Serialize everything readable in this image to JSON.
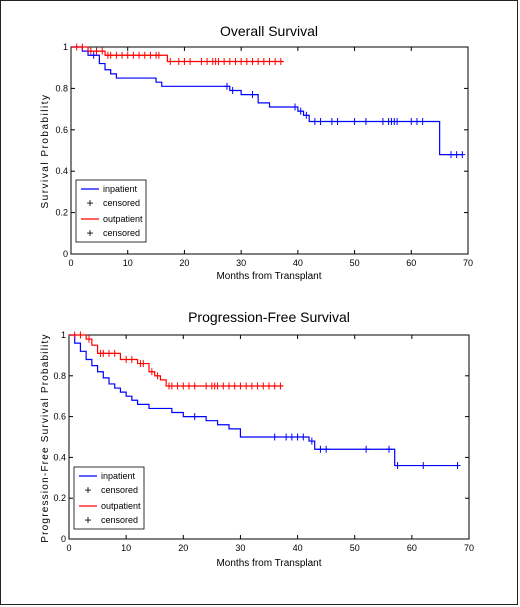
{
  "colors": {
    "inpatient": "#0000ff",
    "outpatient": "#ff0000",
    "axis": "#000000"
  },
  "chart_data": [
    {
      "type": "line",
      "title": "Overall Survival",
      "xlabel": "Months from Transplant",
      "ylabel": "Survival Probability",
      "xlim": [
        0,
        70
      ],
      "ylim": [
        0,
        1
      ],
      "xticks": [
        0,
        10,
        20,
        30,
        40,
        50,
        60,
        70
      ],
      "yticks": [
        0,
        0.2,
        0.4,
        0.6,
        0.8,
        1
      ],
      "ytick_labels": [
        "0",
        "0.2",
        "0.4",
        "0.6",
        "0.8",
        "1"
      ],
      "step": true,
      "legend": {
        "placement": "bottom-left",
        "entries": [
          "inpatient",
          "censored",
          "outpatient",
          "censored"
        ]
      },
      "series": [
        {
          "name": "inpatient",
          "color_key": "inpatient",
          "steps": [
            [
              0,
              1.0
            ],
            [
              2,
              0.98
            ],
            [
              3,
              0.96
            ],
            [
              5,
              0.92
            ],
            [
              6,
              0.89
            ],
            [
              7,
              0.87
            ],
            [
              8,
              0.85
            ],
            [
              15,
              0.83
            ],
            [
              16,
              0.81
            ],
            [
              28,
              0.79
            ],
            [
              30,
              0.77
            ],
            [
              33,
              0.73
            ],
            [
              35,
              0.71
            ],
            [
              40,
              0.69
            ],
            [
              41,
              0.67
            ],
            [
              42,
              0.64
            ],
            [
              65,
              0.48
            ],
            [
              69,
              0.48
            ]
          ],
          "censored": [
            4,
            27.5,
            28.5,
            32,
            39.5,
            40.5,
            41.5,
            43,
            44,
            46,
            47,
            50,
            52,
            55,
            56,
            56.5,
            57,
            57.5,
            60,
            61,
            62,
            67,
            68,
            69
          ]
        },
        {
          "name": "outpatient",
          "color_key": "outpatient",
          "steps": [
            [
              0,
              1.0
            ],
            [
              3,
              0.98
            ],
            [
              6,
              0.96
            ],
            [
              17,
              0.93
            ],
            [
              37.5,
              0.93
            ]
          ],
          "censored": [
            1,
            2,
            3.5,
            4.5,
            5.5,
            6.5,
            7,
            8,
            9,
            10,
            11,
            12,
            13,
            14,
            15,
            15.5,
            17.5,
            19,
            20,
            21,
            23,
            24,
            25,
            25.5,
            26,
            27,
            28,
            29,
            30,
            31,
            32,
            33,
            34,
            35,
            36,
            37
          ]
        }
      ]
    },
    {
      "type": "line",
      "title": "Progression-Free Survival",
      "xlabel": "Months from Transplant",
      "ylabel": "Progression-Free Survival Probability",
      "xlim": [
        0,
        70
      ],
      "ylim": [
        0,
        1
      ],
      "xticks": [
        0,
        10,
        20,
        30,
        40,
        50,
        60,
        70
      ],
      "yticks": [
        0,
        0.2,
        0.4,
        0.6,
        0.8,
        1
      ],
      "ytick_labels": [
        "0",
        "0.2",
        "0.4",
        "0.6",
        "0.8",
        "1"
      ],
      "step": true,
      "legend": {
        "placement": "bottom-left",
        "entries": [
          "inpatient",
          "censored",
          "outpatient",
          "censored"
        ]
      },
      "series": [
        {
          "name": "inpatient",
          "color_key": "inpatient",
          "steps": [
            [
              0,
              1.0
            ],
            [
              1,
              0.96
            ],
            [
              2,
              0.92
            ],
            [
              3,
              0.88
            ],
            [
              4,
              0.85
            ],
            [
              5,
              0.82
            ],
            [
              6,
              0.79
            ],
            [
              7,
              0.76
            ],
            [
              8,
              0.74
            ],
            [
              9,
              0.72
            ],
            [
              10,
              0.7
            ],
            [
              11,
              0.68
            ],
            [
              12,
              0.66
            ],
            [
              14,
              0.64
            ],
            [
              18,
              0.62
            ],
            [
              20,
              0.6
            ],
            [
              24,
              0.58
            ],
            [
              26,
              0.56
            ],
            [
              28,
              0.54
            ],
            [
              30,
              0.5
            ],
            [
              42,
              0.48
            ],
            [
              43,
              0.44
            ],
            [
              57,
              0.36
            ],
            [
              68,
              0.36
            ]
          ],
          "censored": [
            22,
            36,
            38,
            39,
            40,
            41,
            42.5,
            44,
            45,
            52,
            56,
            57.5,
            62,
            68
          ]
        },
        {
          "name": "outpatient",
          "color_key": "outpatient",
          "steps": [
            [
              0,
              1.0
            ],
            [
              3,
              0.98
            ],
            [
              4,
              0.95
            ],
            [
              5,
              0.91
            ],
            [
              9,
              0.88
            ],
            [
              12,
              0.86
            ],
            [
              14,
              0.82
            ],
            [
              15,
              0.8
            ],
            [
              16,
              0.78
            ],
            [
              17,
              0.75
            ],
            [
              37.5,
              0.75
            ]
          ],
          "censored": [
            1,
            2,
            3.5,
            5.5,
            6,
            7,
            8,
            10,
            11,
            12.5,
            13,
            14.5,
            15.5,
            17.5,
            18,
            19,
            20,
            21,
            22,
            24,
            25,
            25.5,
            26,
            27,
            28,
            29,
            30,
            31,
            32,
            33,
            34,
            35,
            36,
            37
          ]
        }
      ]
    }
  ]
}
